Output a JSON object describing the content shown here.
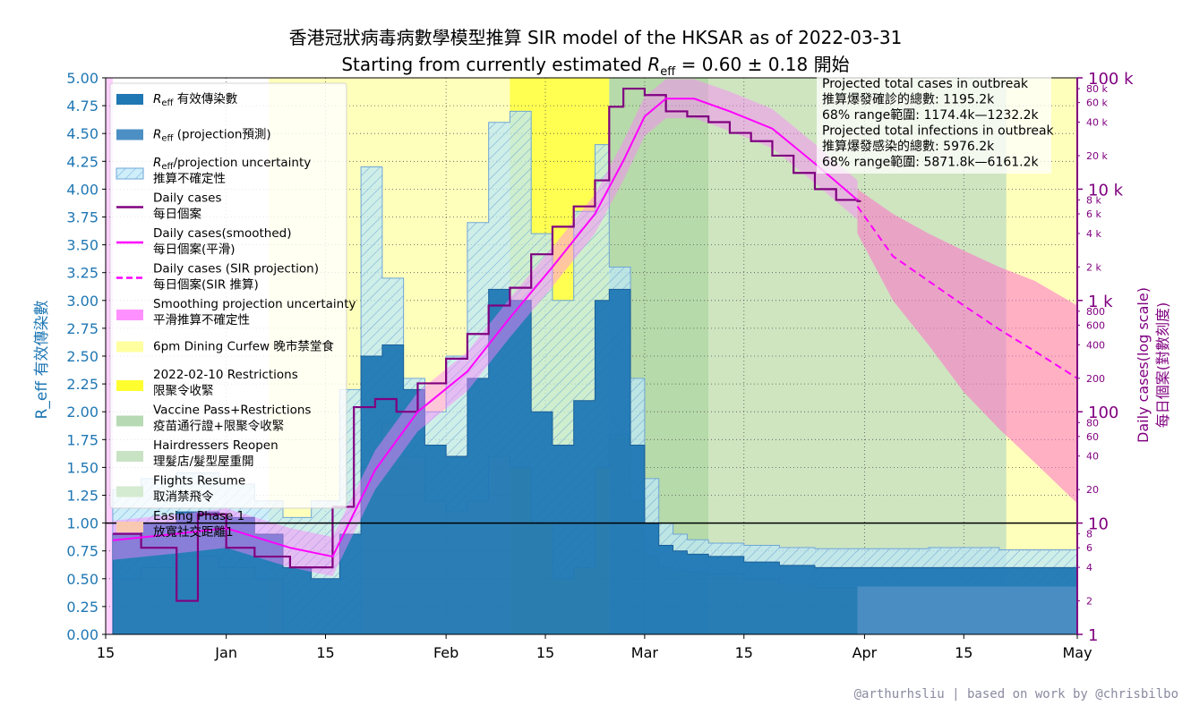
{
  "header": {
    "title_line1": "香港冠狀病毒病數學模型推算 SIR model of the HKSAR as of 2022-03-31",
    "title_line2_prefix": "Starting from currently estimated ",
    "title_line2_reff": "R",
    "title_line2_reff_sub": "eff",
    "title_line2_value": " = 0.60 ± 0.18 開始"
  },
  "credit": "@arthurhsliu | based on work by @chrisbilbo",
  "colors": {
    "reff": "#1f77b4",
    "reff_projection": "#4c8fc4",
    "uncertainty_fill": "#bde8f7",
    "daily_cases": "#800080",
    "smoothed": "#ff00ff",
    "projection_band": "#ff80ff",
    "curfew": "#ffffa0",
    "restrictions": "#ffff30",
    "vaccine_pass": "#b7dab4",
    "hairdressers": "#c8e3c4",
    "flights": "#d4ead1",
    "easing": "#f8c8b0"
  },
  "chart_data": {
    "type": "line",
    "left_axis": {
      "label": "R_eff 有效傳染數",
      "ylim": [
        0,
        5
      ],
      "ticks": [
        "0.00",
        "0.25",
        "0.50",
        "0.75",
        "1.00",
        "1.25",
        "1.50",
        "1.75",
        "2.00",
        "2.25",
        "2.50",
        "2.75",
        "3.00",
        "3.25",
        "3.50",
        "3.75",
        "4.00",
        "4.25",
        "4.50",
        "4.75",
        "5.00"
      ]
    },
    "right_axis": {
      "label_line1": "Daily cases(log scale)",
      "label_line2": "每日個案(對數刻度)",
      "scale": "log",
      "ylim": [
        1,
        100000
      ],
      "major_ticks": [
        "1",
        "10",
        "100",
        "1 k",
        "10 k",
        "100 k"
      ],
      "minor_ticks": [
        "2",
        "4",
        "6",
        "8",
        "20",
        "40",
        "60",
        "80",
        "200",
        "400",
        "600",
        "800",
        "2 k",
        "4 k",
        "6 k",
        "8 k",
        "20 k",
        "40 k",
        "60 k",
        "80 k"
      ]
    },
    "x_axis": {
      "range": [
        "2021-12-15",
        "2022-05-01"
      ],
      "tick_labels": [
        "15",
        "Jan",
        "15",
        "Feb",
        "15",
        "Mar",
        "15",
        "Apr",
        "15",
        "May"
      ]
    },
    "periods": [
      {
        "name": "6pm Dining Curfew 晚市禁堂食",
        "start": "2022-01-07",
        "end": "2022-04-21",
        "color": "#ffffb0"
      },
      {
        "name": "2022-02-10 Restrictions 限聚令收緊",
        "start": "2022-02-10",
        "end": "2022-02-24",
        "color": "#ffff40"
      },
      {
        "name": "Vaccine Pass+Restrictions 疫苗通行證+限聚令收緊",
        "start": "2022-02-24",
        "end": "2022-03-10",
        "color": "#a9d3a6"
      },
      {
        "name": "Hairdressers Reopen 理髮店/髮型屋重開",
        "start": "2022-03-10",
        "end": "2022-04-21",
        "color": "#c5e0c1"
      }
    ],
    "reff_dates": [
      "2021-12-16",
      "2021-12-20",
      "2021-12-25",
      "2021-12-31",
      "2022-01-05",
      "2022-01-09",
      "2022-01-13",
      "2022-01-17",
      "2022-01-20",
      "2022-01-23",
      "2022-01-26",
      "2022-01-29",
      "2022-02-01",
      "2022-02-04",
      "2022-02-07",
      "2022-02-10",
      "2022-02-13",
      "2022-02-16",
      "2022-02-19",
      "2022-02-22",
      "2022-02-24",
      "2022-02-27",
      "2022-03-01",
      "2022-03-03",
      "2022-03-05",
      "2022-03-07",
      "2022-03-10",
      "2022-03-15",
      "2022-03-20",
      "2022-03-25",
      "2022-03-31",
      "2022-04-10",
      "2022-04-20",
      "2022-05-01"
    ],
    "reff_mean": [
      0.9,
      1.0,
      1.1,
      1.05,
      0.9,
      0.6,
      0.5,
      0.9,
      2.5,
      2.6,
      2.2,
      1.7,
      1.6,
      2.3,
      3.1,
      3.0,
      2.0,
      1.7,
      2.1,
      3.0,
      3.1,
      1.7,
      1.0,
      0.8,
      0.75,
      0.72,
      0.7,
      0.65,
      0.62,
      0.6,
      0.6,
      0.6,
      0.6,
      0.6
    ],
    "reff_upper": [
      1.3,
      1.4,
      1.45,
      1.35,
      1.2,
      1.05,
      1.2,
      2.2,
      4.2,
      3.2,
      2.3,
      2.0,
      2.5,
      3.7,
      4.6,
      4.7,
      3.6,
      3.0,
      3.8,
      4.4,
      3.3,
      2.3,
      1.4,
      1.0,
      0.9,
      0.85,
      0.82,
      0.8,
      0.78,
      0.77,
      0.77,
      0.78,
      0.76,
      0.75
    ],
    "reff_lower": [
      0.5,
      0.6,
      0.7,
      0.6,
      0.5,
      0.0,
      0.0,
      0.0,
      1.5,
      1.9,
      1.6,
      1.2,
      1.1,
      1.2,
      1.6,
      1.5,
      1.0,
      0.5,
      0.6,
      1.5,
      1.8,
      1.2,
      0.7,
      0.6,
      0.58,
      0.56,
      0.54,
      0.5,
      0.45,
      0.42,
      0.42,
      0.42,
      0.42,
      0.42
    ],
    "daily_cases_dates": [
      "2021-12-16",
      "2021-12-20",
      "2021-12-25",
      "2021-12-28",
      "2022-01-01",
      "2022-01-05",
      "2022-01-10",
      "2022-01-13",
      "2022-01-16",
      "2022-01-19",
      "2022-01-22",
      "2022-01-25",
      "2022-01-28",
      "2022-02-01",
      "2022-02-04",
      "2022-02-07",
      "2022-02-10",
      "2022-02-13",
      "2022-02-16",
      "2022-02-19",
      "2022-02-22",
      "2022-02-24",
      "2022-02-26",
      "2022-03-01",
      "2022-03-04",
      "2022-03-07",
      "2022-03-10",
      "2022-03-13",
      "2022-03-16",
      "2022-03-19",
      "2022-03-22",
      "2022-03-25",
      "2022-03-28",
      "2022-03-31"
    ],
    "daily_cases": [
      8,
      6,
      2,
      12,
      6,
      5,
      4,
      4,
      14,
      110,
      130,
      100,
      180,
      300,
      500,
      900,
      1300,
      2600,
      4600,
      7000,
      12000,
      55000,
      80000,
      70000,
      50000,
      45000,
      40000,
      32000,
      27000,
      20000,
      14000,
      10000,
      8000,
      7800
    ],
    "smoothed_dates": [
      "2021-12-16",
      "2021-12-25",
      "2022-01-01",
      "2022-01-10",
      "2022-01-16",
      "2022-01-22",
      "2022-01-28",
      "2022-02-04",
      "2022-02-10",
      "2022-02-16",
      "2022-02-22",
      "2022-02-26",
      "2022-03-01",
      "2022-03-04",
      "2022-03-08",
      "2022-03-13",
      "2022-03-19",
      "2022-03-25",
      "2022-03-31"
    ],
    "smoothed": [
      7,
      8,
      9,
      6,
      5,
      30,
      100,
      230,
      700,
      2000,
      6000,
      18000,
      45000,
      65000,
      65000,
      50000,
      35000,
      17000,
      8000
    ],
    "projection_dates": [
      "2022-03-31",
      "2022-04-05",
      "2022-04-10",
      "2022-04-15",
      "2022-04-20",
      "2022-04-25",
      "2022-05-01"
    ],
    "projection": [
      7000,
      2500,
      1500,
      900,
      550,
      350,
      200
    ],
    "projection_upper": [
      10000,
      6000,
      4000,
      2800,
      2000,
      1500,
      900
    ],
    "projection_lower": [
      4000,
      1000,
      400,
      150,
      70,
      35,
      15
    ],
    "projection_info": {
      "line1": "Projected total cases in outbreak",
      "line2": "推算爆發確診的總數: 1195.2k",
      "line3": "68% range範圍: 1174.4k—1232.2k",
      "line4": "Projected total infections in outbreak",
      "line5": "推算爆發感染的總數: 5976.2k",
      "line6": "68% range範圍: 5871.8k—6161.2k"
    },
    "legend": [
      {
        "label_main": "R",
        "label_sub": "eff",
        "label_rest": " 有效傳染數",
        "label2": "",
        "kind": "reff"
      },
      {
        "label_main": "R",
        "label_sub": "eff",
        "label_rest": " (projection預測)",
        "label2": "",
        "kind": "reff_proj"
      },
      {
        "label_main": "R",
        "label_sub": "eff",
        "label_rest": "/projection uncertainty",
        "label2": "推算不確定性",
        "kind": "uncert"
      },
      {
        "label_main": "Daily cases",
        "label_sub": "",
        "label_rest": "",
        "label2": "每日個案",
        "kind": "daily"
      },
      {
        "label_main": "Daily cases(smoothed)",
        "label_sub": "",
        "label_rest": "",
        "label2": "每日個案(平滑)",
        "kind": "smoothed"
      },
      {
        "label_main": "Daily cases (SIR projection)",
        "label_sub": "",
        "label_rest": "",
        "label2": "每日個案(SIR 推算)",
        "kind": "projection"
      },
      {
        "label_main": "Smoothing projection uncertainty",
        "label_sub": "",
        "label_rest": "",
        "label2": "平滑推算不確定性",
        "kind": "smooth_band"
      },
      {
        "label_main": "6pm Dining Curfew 晚市禁堂食",
        "label_sub": "",
        "label_rest": "",
        "label2": "",
        "kind": "curfew"
      },
      {
        "label_main": "2022-02-10 Restrictions",
        "label_sub": "",
        "label_rest": "",
        "label2": "限聚令收緊",
        "kind": "restrictions"
      },
      {
        "label_main": "Vaccine Pass+Restrictions",
        "label_sub": "",
        "label_rest": "",
        "label2": "疫苗通行證+限聚令收緊",
        "kind": "vaccine"
      },
      {
        "label_main": "Hairdressers Reopen",
        "label_sub": "",
        "label_rest": "",
        "label2": "理髮店/髮型屋重開",
        "kind": "hair"
      },
      {
        "label_main": "Flights Resume",
        "label_sub": "",
        "label_rest": "",
        "label2": "取消禁飛令",
        "kind": "flights"
      },
      {
        "label_main": "Easing Phase 1",
        "label_sub": "",
        "label_rest": "",
        "label2": "放寬社交距離1",
        "kind": "easing"
      }
    ]
  }
}
